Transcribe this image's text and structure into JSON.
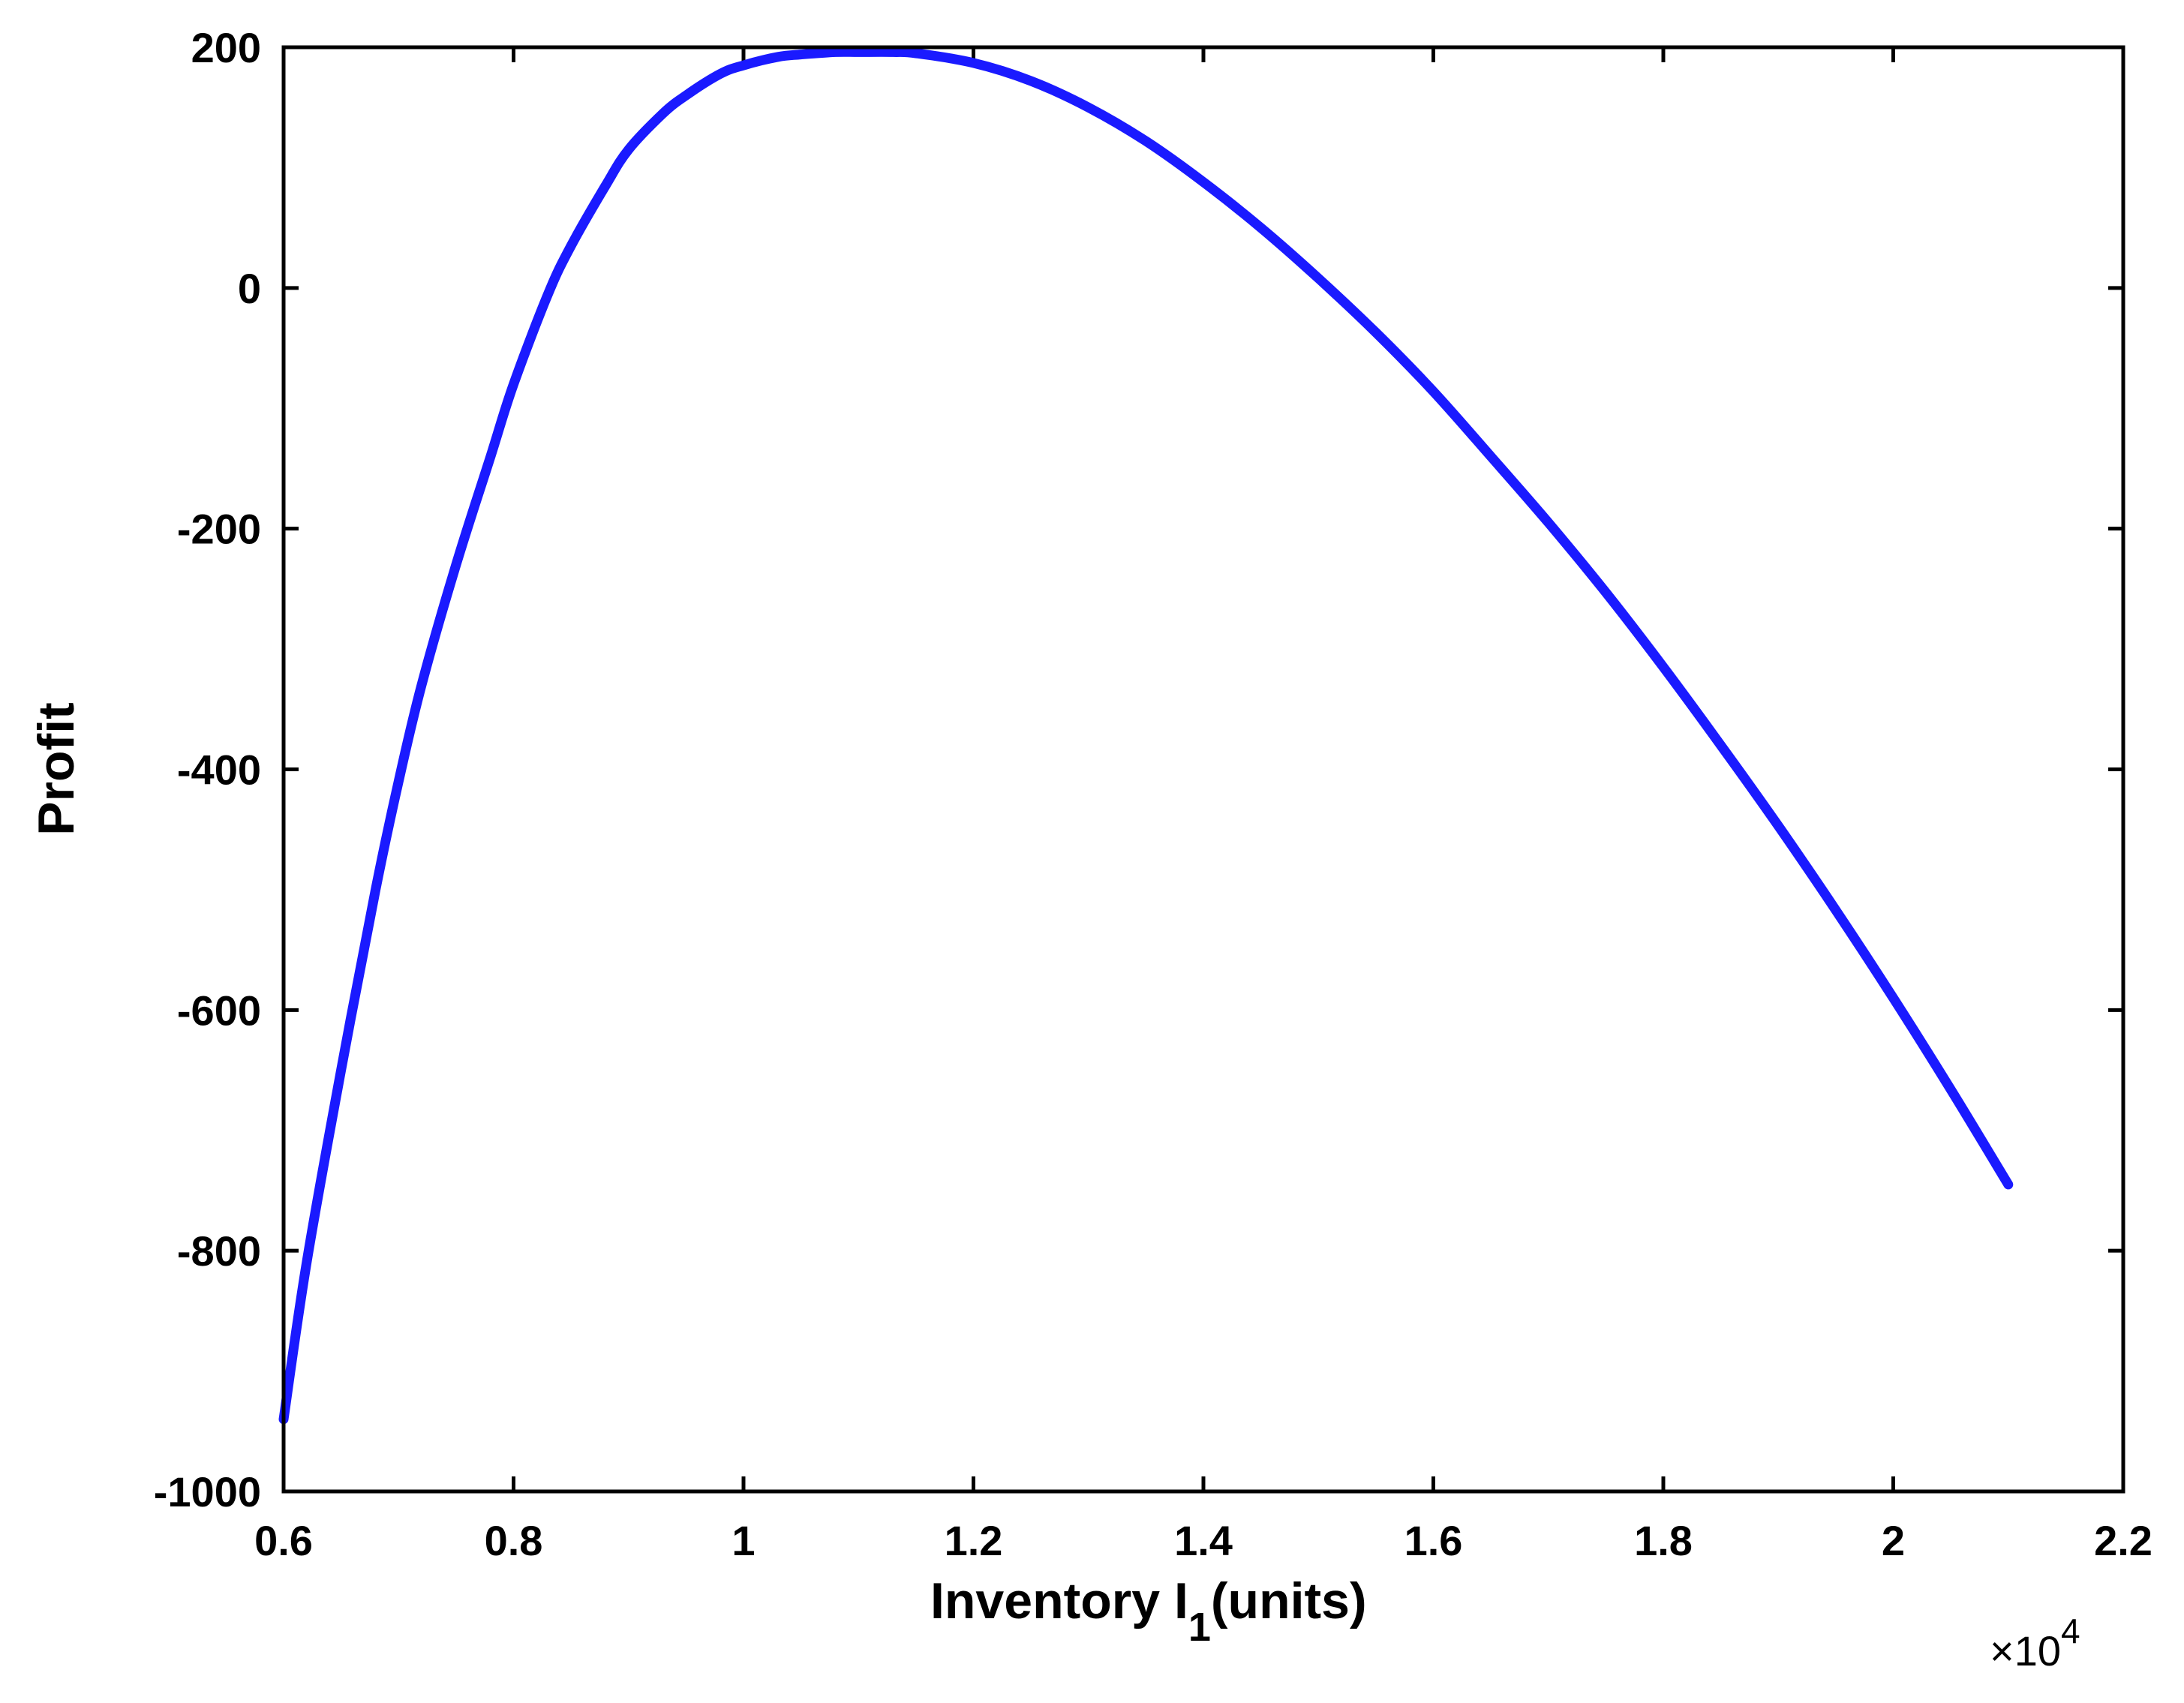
{
  "chart_data": {
    "type": "line",
    "title": "",
    "xlabel": "Inventory I",
    "xlabel_subscript": "1",
    "xlabel_suffix": "(units)",
    "ylabel": "Profit",
    "x_exponent_multiplier": "×10",
    "x_exponent_power": "4",
    "xlim": [
      0.6,
      2.2
    ],
    "ylim": [
      -1000,
      200
    ],
    "x_ticks": [
      0.6,
      0.8,
      1,
      1.2,
      1.4,
      1.6,
      1.8,
      2,
      2.2
    ],
    "x_tick_labels": [
      "0.6",
      "0.8",
      "1",
      "1.2",
      "1.4",
      "1.6",
      "1.8",
      "2",
      "2.2"
    ],
    "y_ticks": [
      -1000,
      -800,
      -600,
      -400,
      -200,
      0,
      200
    ],
    "y_tick_labels": [
      "-1000",
      "-800",
      "-600",
      "-400",
      "-200",
      "0",
      "200"
    ],
    "grid": false,
    "legend": "none",
    "line_color": "#1a1aff",
    "series": [
      {
        "x": [
          0.6,
          0.62,
          0.65,
          0.68,
          0.7,
          0.72,
          0.75,
          0.78,
          0.8,
          0.83,
          0.85,
          0.88,
          0.9,
          0.93,
          0.95,
          0.98,
          1.0,
          1.03,
          1.05,
          1.08,
          1.1,
          1.13,
          1.15,
          1.2,
          1.25,
          1.3,
          1.35,
          1.4,
          1.45,
          1.5,
          1.55,
          1.6,
          1.65,
          1.7,
          1.75,
          1.8,
          1.85,
          1.9,
          1.95,
          2.0,
          2.05,
          2.1
        ],
        "y": [
          -940,
          -810,
          -650,
          -500,
          -410,
          -330,
          -230,
          -140,
          -80,
          -5,
          35,
          85,
          115,
          145,
          160,
          178,
          185,
          192,
          194,
          196,
          196,
          196,
          195,
          187,
          172,
          150,
          122,
          88,
          50,
          8,
          -37,
          -86,
          -140,
          -195,
          -253,
          -315,
          -380,
          -447,
          -517,
          -590,
          -666,
          -745
        ]
      }
    ]
  }
}
